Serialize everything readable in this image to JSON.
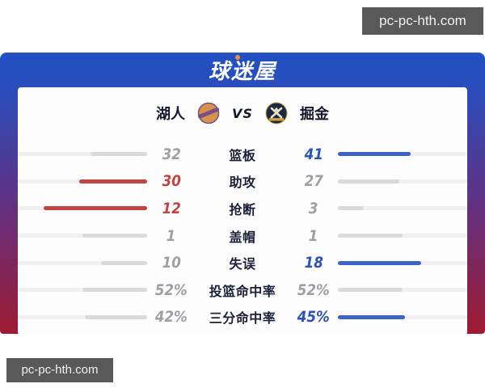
{
  "watermark": {
    "text": "pc-pc-hth.com"
  },
  "banner": {
    "logo_text": "球迷屋"
  },
  "header": {
    "home_team": "湖人",
    "vs": "VS",
    "away_team": "掘金",
    "home_logo": "lakers-logo",
    "away_logo": "nuggets-logo"
  },
  "stats": {
    "rows": [
      {
        "label": "篮板",
        "home": {
          "display": "32",
          "value": 32,
          "highlight": "gray"
        },
        "away": {
          "display": "41",
          "value": 41,
          "highlight": "blue"
        }
      },
      {
        "label": "助攻",
        "home": {
          "display": "30",
          "value": 30,
          "highlight": "red"
        },
        "away": {
          "display": "27",
          "value": 27,
          "highlight": "gray"
        }
      },
      {
        "label": "抢断",
        "home": {
          "display": "12",
          "value": 12,
          "highlight": "red"
        },
        "away": {
          "display": "3",
          "value": 3,
          "highlight": "gray"
        }
      },
      {
        "label": "盖帽",
        "home": {
          "display": "1",
          "value": 1,
          "highlight": "gray"
        },
        "away": {
          "display": "1",
          "value": 1,
          "highlight": "gray"
        }
      },
      {
        "label": "失误",
        "home": {
          "display": "10",
          "value": 10,
          "highlight": "gray"
        },
        "away": {
          "display": "18",
          "value": 18,
          "highlight": "blue"
        }
      },
      {
        "label": "投篮命中率",
        "home": {
          "display": "52%",
          "value": 52,
          "highlight": "gray"
        },
        "away": {
          "display": "52%",
          "value": 52,
          "highlight": "gray"
        }
      },
      {
        "label": "三分命中率",
        "home": {
          "display": "42%",
          "value": 42,
          "highlight": "gray"
        },
        "away": {
          "display": "45%",
          "value": 45,
          "highlight": "blue"
        }
      }
    ]
  },
  "colors": {
    "red_fill": "#c2443f",
    "blue_fill": "#3b63c9",
    "gray_fill": "#dadada",
    "red_text": "#c2443f",
    "blue_text": "#2d52b5",
    "gray_text": "#9fa0a6",
    "track": "#f1f1f1",
    "banner_blue": "#2151c5",
    "bottom_red": "#9e1b31",
    "lakers_orange": "#d9924b",
    "lakers_purple": "#7a5184",
    "nuggets_navy": "#1b2a44",
    "nuggets_gold": "#c9a43e"
  }
}
